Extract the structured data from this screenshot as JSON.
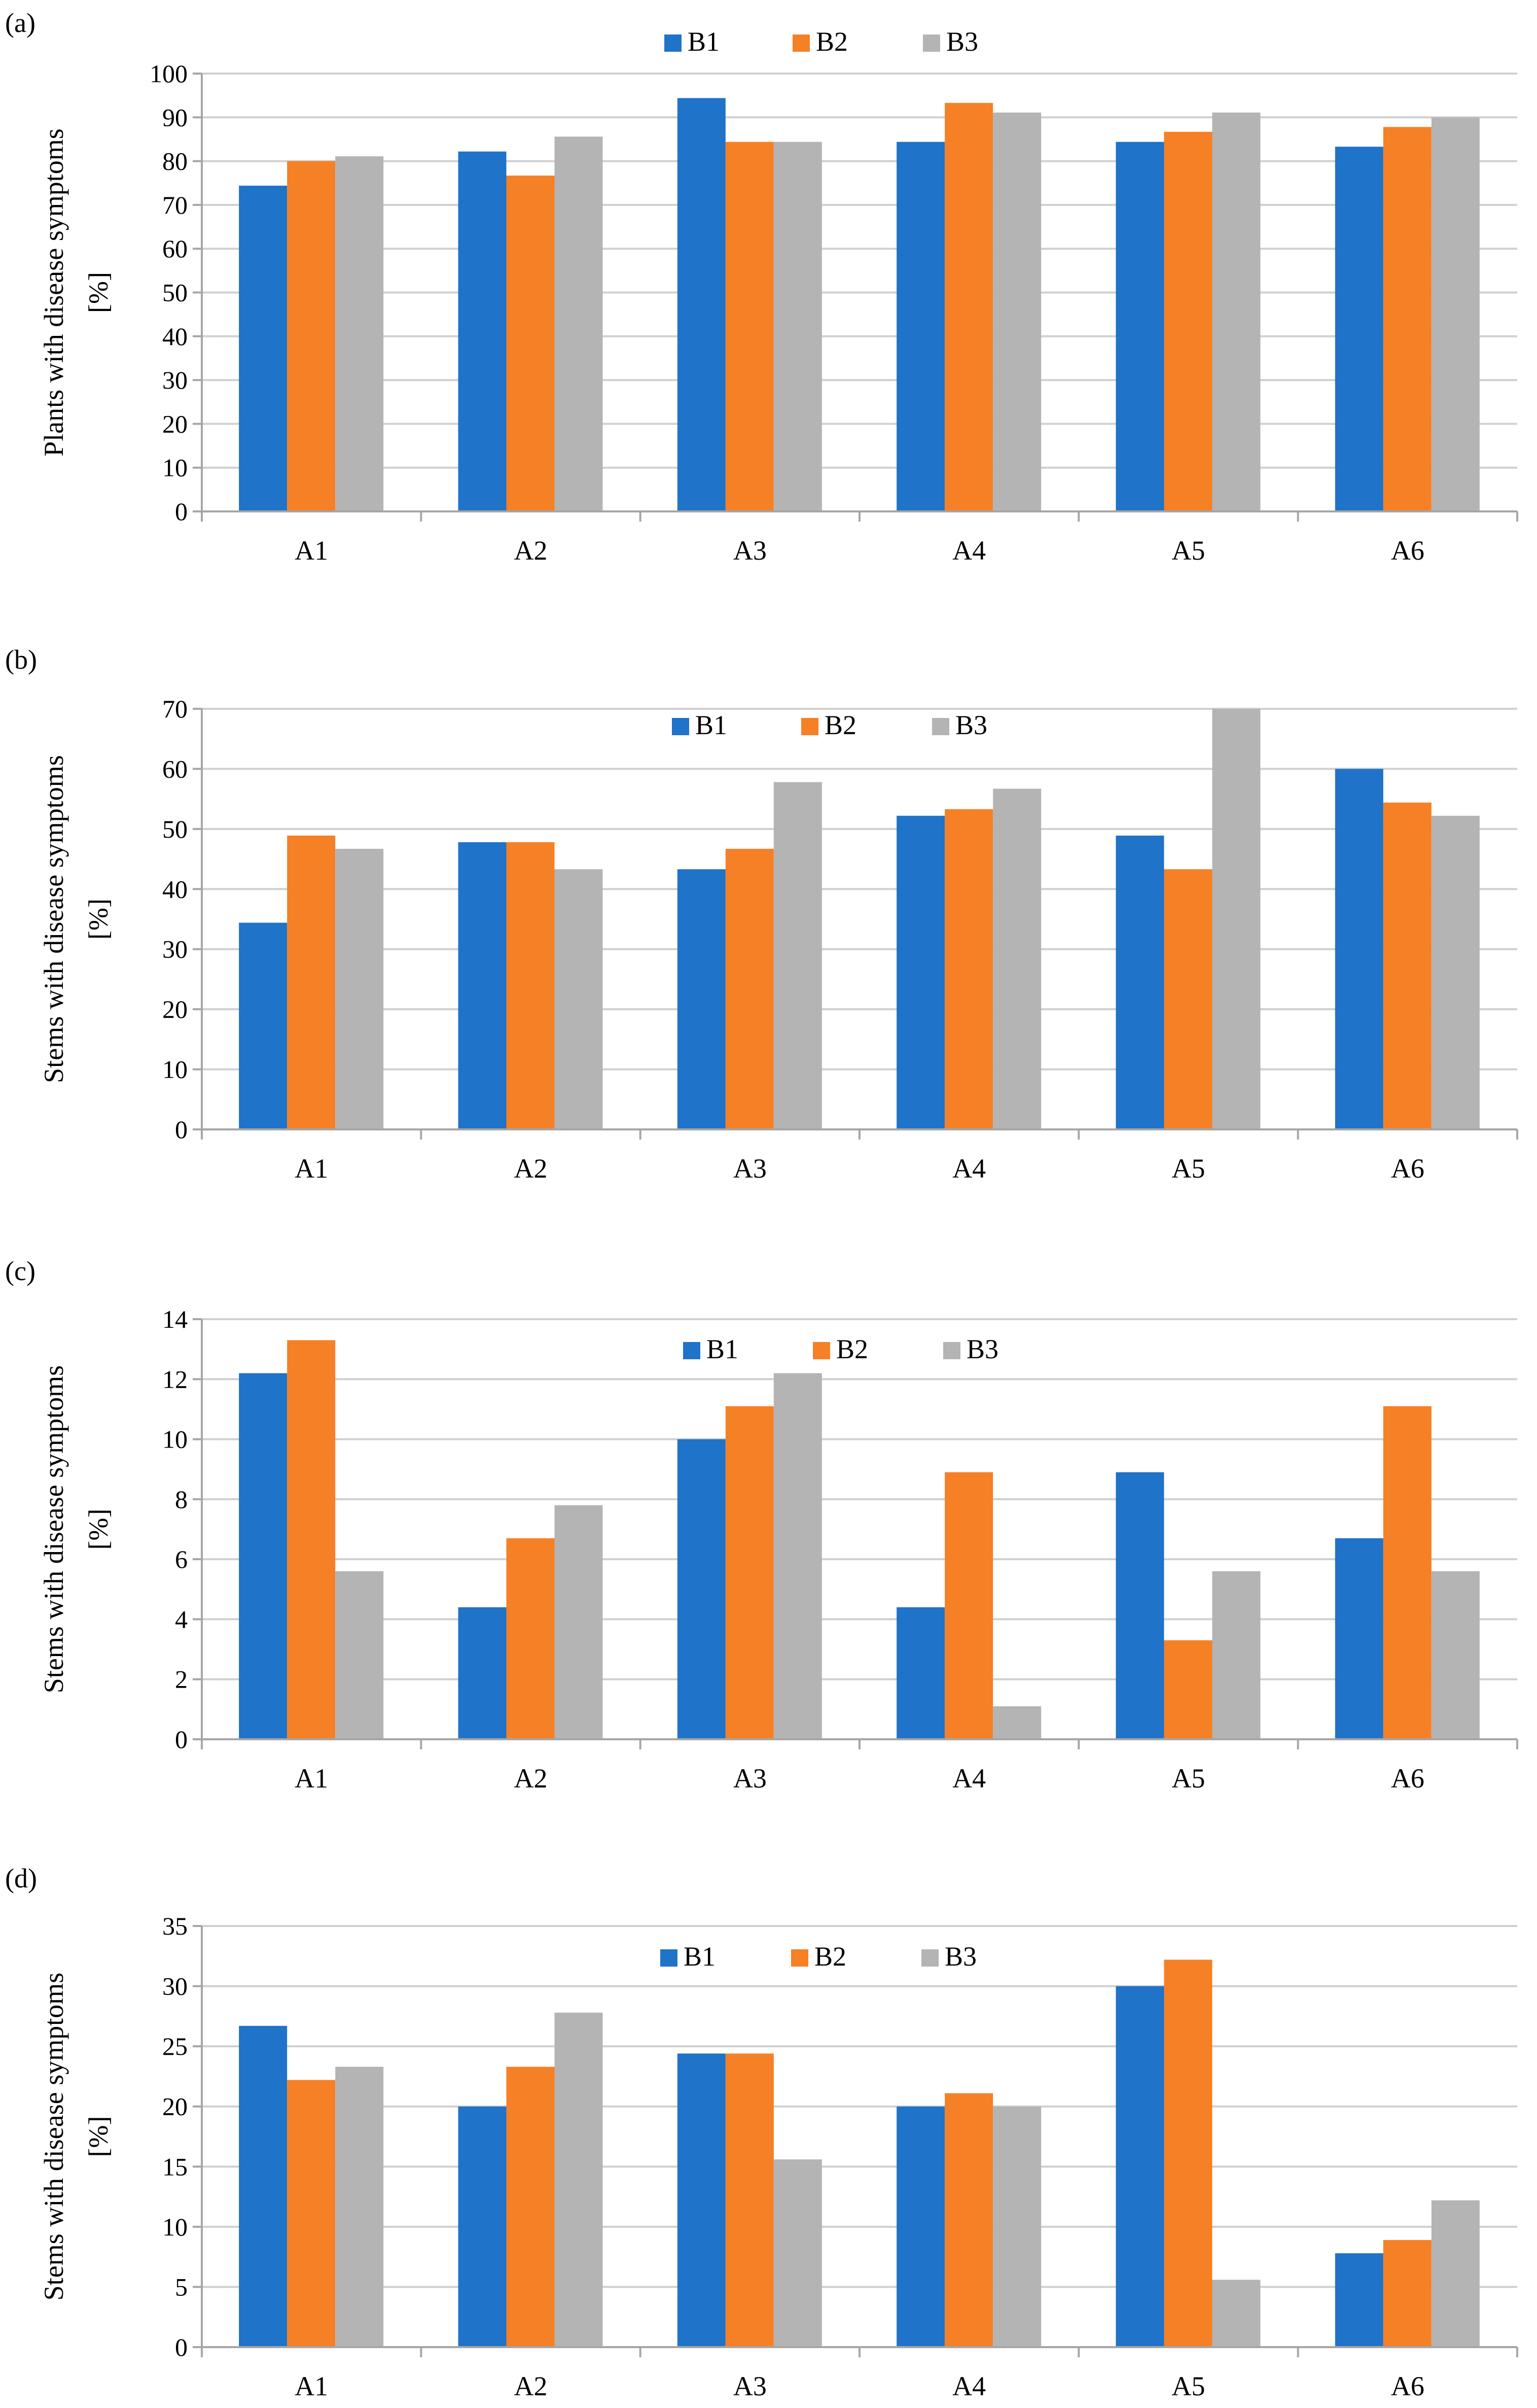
{
  "colors": {
    "B1": "#1f73c8",
    "B2": "#f68025",
    "B3": "#b4b4b4"
  },
  "chart_data": [
    {
      "type": "bar",
      "panel_label": "(a)",
      "ylabel_line1": "Plants with disease symptoms",
      "ylabel_line2": "[%]",
      "categories": [
        "A1",
        "A2",
        "A3",
        "A4",
        "A5",
        "A6"
      ],
      "ylim": [
        0,
        100
      ],
      "ytick_step": 10,
      "legend_position": "top-center",
      "series": [
        {
          "name": "B1",
          "values": [
            74.4,
            82.2,
            94.4,
            84.4,
            84.4,
            83.3
          ]
        },
        {
          "name": "B2",
          "values": [
            80.0,
            76.7,
            84.4,
            93.3,
            86.7,
            87.8
          ]
        },
        {
          "name": "B3",
          "values": [
            81.1,
            85.6,
            84.4,
            91.1,
            91.1,
            90.0
          ]
        }
      ]
    },
    {
      "type": "bar",
      "panel_label": "(b)",
      "ylabel_line1": "Stems with disease symptoms",
      "ylabel_line2": "[%]",
      "categories": [
        "A1",
        "A2",
        "A3",
        "A4",
        "A5",
        "A6"
      ],
      "ylim": [
        0,
        70
      ],
      "ytick_step": 10,
      "legend_position": "top-center",
      "series": [
        {
          "name": "B1",
          "values": [
            34.4,
            47.8,
            43.3,
            52.2,
            48.9,
            60.0
          ]
        },
        {
          "name": "B2",
          "values": [
            48.9,
            47.8,
            46.7,
            53.3,
            43.3,
            54.4
          ]
        },
        {
          "name": "B3",
          "values": [
            46.7,
            43.3,
            57.8,
            56.7,
            70.0,
            52.2
          ]
        }
      ]
    },
    {
      "type": "bar",
      "panel_label": "(c)",
      "ylabel_line1": "Stems with disease symptoms",
      "ylabel_line2": "[%]",
      "categories": [
        "A1",
        "A2",
        "A3",
        "A4",
        "A5",
        "A6"
      ],
      "ylim": [
        0,
        14
      ],
      "ytick_step": 2,
      "legend_position": "top-center",
      "series": [
        {
          "name": "B1",
          "values": [
            12.2,
            4.4,
            10.0,
            4.4,
            8.9,
            6.7
          ]
        },
        {
          "name": "B2",
          "values": [
            13.3,
            6.7,
            11.1,
            8.9,
            3.3,
            11.1
          ]
        },
        {
          "name": "B3",
          "values": [
            5.6,
            7.8,
            12.2,
            1.1,
            5.6,
            5.6
          ]
        }
      ]
    },
    {
      "type": "bar",
      "panel_label": "(d)",
      "ylabel_line1": "Stems with disease symptoms",
      "ylabel_line2": "[%]",
      "categories": [
        "A1",
        "A2",
        "A3",
        "A4",
        "A5",
        "A6"
      ],
      "ylim": [
        0,
        35
      ],
      "ytick_step": 5,
      "legend_position": "top-center",
      "series": [
        {
          "name": "B1",
          "values": [
            26.7,
            20.0,
            24.4,
            20.0,
            30.0,
            7.8
          ]
        },
        {
          "name": "B2",
          "values": [
            22.2,
            23.3,
            24.4,
            21.1,
            32.2,
            8.9
          ]
        },
        {
          "name": "B3",
          "values": [
            23.3,
            27.8,
            15.6,
            20.0,
            5.6,
            12.2
          ]
        }
      ]
    }
  ]
}
